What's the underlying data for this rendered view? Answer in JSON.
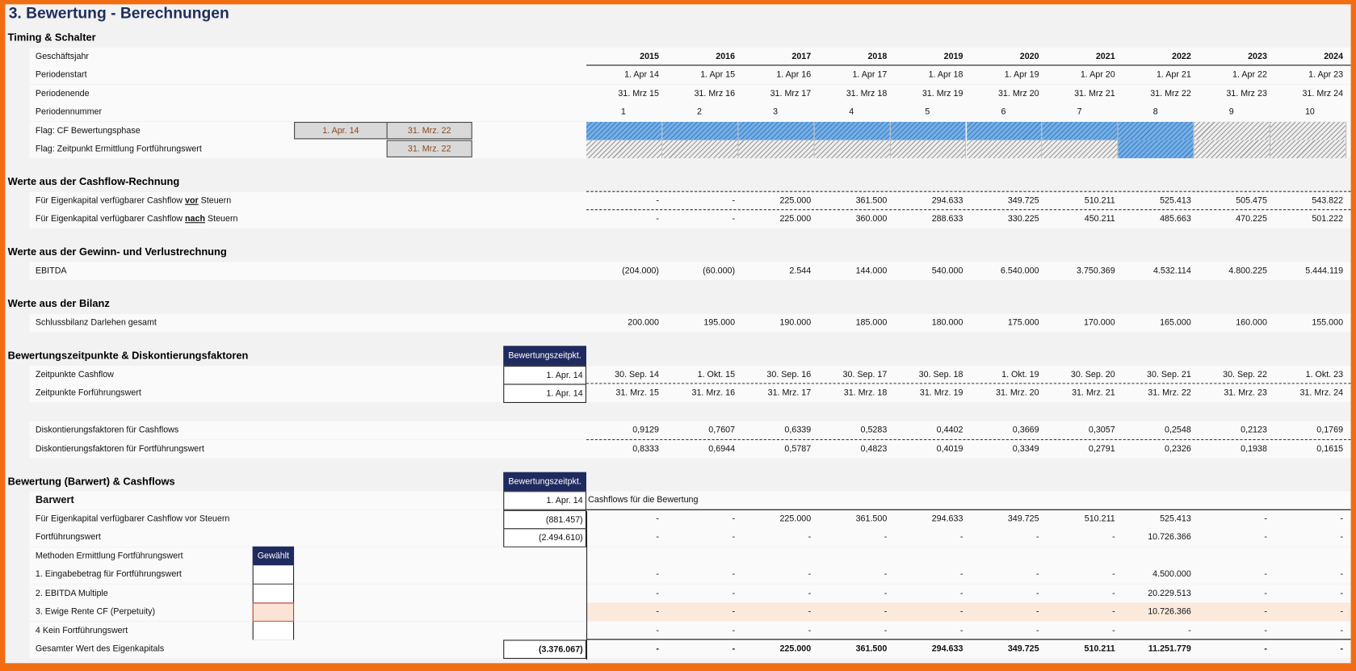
{
  "title": "3. Bewertung - Berechnungen",
  "rows": [
    {
      "kind": "heading",
      "label": "Timing & Schalter"
    },
    {
      "kind": "years",
      "label": "Geschäftsjahr",
      "values": [
        "2015",
        "2016",
        "2017",
        "2018",
        "2019",
        "2020",
        "2021",
        "2022",
        "2023",
        "2024"
      ]
    },
    {
      "kind": "row",
      "label": "Periodenstart",
      "values": [
        "1. Apr 14",
        "1. Apr 15",
        "1. Apr 16",
        "1. Apr 17",
        "1. Apr 18",
        "1. Apr 19",
        "1. Apr 20",
        "1. Apr 21",
        "1. Apr 22",
        "1. Apr 23"
      ]
    },
    {
      "kind": "row",
      "label": "Periodenende",
      "values": [
        "31. Mrz 15",
        "31. Mrz 16",
        "31. Mrz 17",
        "31. Mrz 18",
        "31. Mrz 19",
        "31. Mrz 20",
        "31. Mrz 21",
        "31. Mrz 22",
        "31. Mrz 23",
        "31. Mrz 24"
      ]
    },
    {
      "kind": "periods",
      "label": "Periodennummer",
      "values": [
        "1",
        "2",
        "3",
        "4",
        "5",
        "6",
        "7",
        "8",
        "9",
        "10"
      ]
    },
    {
      "kind": "flag",
      "label": "Flag: CF Bewertungsphase",
      "box_start": "1. Apr. 14",
      "box_end": "31. Mrz. 22",
      "flags": [
        1,
        1,
        1,
        1,
        1,
        1,
        1,
        1,
        0,
        0
      ]
    },
    {
      "kind": "flag",
      "label": "Flag: Zeitpunkt Ermittlung Fortführungswert",
      "box_end": "31. Mrz. 22",
      "flags": [
        0,
        0,
        0,
        0,
        0,
        0,
        0,
        1,
        0,
        0
      ]
    },
    {
      "kind": "heading",
      "label": "Werte aus der Cashflow-Rechnung"
    },
    {
      "kind": "row",
      "line": "dash",
      "label": "Für Eigenkapital verfügbarer Cashflow ",
      "label_em": "vor",
      "label_post": " Steuern",
      "values": [
        "-",
        "-",
        "225.000",
        "361.500",
        "294.633",
        "349.725",
        "510.211",
        "525.413",
        "505.475",
        "543.822"
      ]
    },
    {
      "kind": "row",
      "line": "dash",
      "label": "Für Eigenkapital verfügbarer Cashflow ",
      "label_em": "nach",
      "label_post": " Steuern",
      "values": [
        "-",
        "-",
        "225.000",
        "360.000",
        "288.633",
        "330.225",
        "450.211",
        "485.663",
        "470.225",
        "501.222"
      ]
    },
    {
      "kind": "heading",
      "label": "Werte aus der Gewinn- und Verlustrechnung"
    },
    {
      "kind": "row",
      "label": "EBITDA",
      "values": [
        "(204.000)",
        "(60.000)",
        "2.544",
        "144.000",
        "540.000",
        "6.540.000",
        "3.750.369",
        "4.532.114",
        "4.800.225",
        "5.444.119"
      ]
    },
    {
      "kind": "heading",
      "label": "Werte aus der Bilanz"
    },
    {
      "kind": "row",
      "label": "Schlussbilanz Darlehen gesamt",
      "values": [
        "200.000",
        "195.000",
        "190.000",
        "185.000",
        "180.000",
        "175.000",
        "170.000",
        "165.000",
        "160.000",
        "155.000"
      ]
    },
    {
      "kind": "heading",
      "label": "Bewertungszeitpunkte & Diskontierungsfaktoren",
      "bz_head": "Bewertungszeitpkt."
    },
    {
      "kind": "row",
      "label": "Zeitpunkte Cashflow",
      "bz": "1. Apr. 14",
      "values": [
        "30. Sep. 14",
        "1. Okt. 15",
        "30. Sep. 16",
        "30. Sep. 17",
        "30. Sep. 18",
        "1. Okt. 19",
        "30. Sep. 20",
        "30. Sep. 21",
        "30. Sep. 22",
        "1. Okt. 23"
      ]
    },
    {
      "kind": "row",
      "line": "dash",
      "label": "Zeitpunkte Forführungswert",
      "bz": "1. Apr. 14",
      "values": [
        "31. Mrz. 15",
        "31. Mrz. 16",
        "31. Mrz. 17",
        "31. Mrz. 18",
        "31. Mrz. 19",
        "31. Mrz. 20",
        "31. Mrz. 21",
        "31. Mrz. 22",
        "31. Mrz. 23",
        "31. Mrz. 24"
      ]
    },
    {
      "kind": "row",
      "label": "Diskontierungsfaktoren für Cashflows",
      "values": [
        "0,9129",
        "0,7607",
        "0,6339",
        "0,5283",
        "0,4402",
        "0,3669",
        "0,3057",
        "0,2548",
        "0,2123",
        "0,1769"
      ]
    },
    {
      "kind": "row",
      "line": "dash",
      "label": "Diskontierungsfaktoren für Fortführungswert",
      "values": [
        "0,8333",
        "0,6944",
        "0,5787",
        "0,4823",
        "0,4019",
        "0,3349",
        "0,2791",
        "0,2326",
        "0,1938",
        "0,1615"
      ]
    },
    {
      "kind": "heading",
      "label": "Bewertung (Barwert) & Cashflows",
      "bz_head": "Bewertungszeitpkt."
    },
    {
      "kind": "big",
      "label": "Barwert",
      "bz": "1. Apr. 14",
      "note": "Cashflows für die Bewertung"
    },
    {
      "kind": "row",
      "line": "solid",
      "label": "Für Eigenkapital verfügbarer Cashflow vor Steuern",
      "bz": "(881.457)",
      "values": [
        "-",
        "-",
        "225.000",
        "361.500",
        "294.633",
        "349.725",
        "510.211",
        "525.413",
        "-",
        "-"
      ]
    },
    {
      "kind": "row",
      "label": "Fortführungswert",
      "bz": "(2.494.610)",
      "values": [
        "-",
        "-",
        "-",
        "-",
        "-",
        "-",
        "-",
        "10.726.366",
        "-",
        "-"
      ]
    },
    {
      "kind": "gewhead",
      "label": "Methoden Ermittlung Fortführungswert",
      "gew_head": "Gewählt"
    },
    {
      "kind": "method",
      "label": "1. Eingabebetrag für Fortführungswert",
      "values": [
        "-",
        "-",
        "-",
        "-",
        "-",
        "-",
        "-",
        "4.500.000",
        "-",
        "-"
      ]
    },
    {
      "kind": "method",
      "label": "2. EBITDA Multiple",
      "values": [
        "-",
        "-",
        "-",
        "-",
        "-",
        "-",
        "-",
        "20.229.513",
        "-",
        "-"
      ]
    },
    {
      "kind": "method",
      "selected": true,
      "label": "3. Ewige Rente CF (Perpetuity)",
      "values": [
        "-",
        "-",
        "-",
        "-",
        "-",
        "-",
        "-",
        "10.726.366",
        "-",
        "-"
      ]
    },
    {
      "kind": "method",
      "label": "4  Kein Fortführungswert",
      "values": [
        "-",
        "-",
        "-",
        "-",
        "-",
        "-",
        "-",
        "-",
        "-",
        "-"
      ]
    },
    {
      "kind": "row",
      "line": "solid",
      "bold": true,
      "label": "Gesamter Wert des Eigenkapitals",
      "bz": "(3.376.067)",
      "values": [
        "-",
        "-",
        "225.000",
        "361.500",
        "294.633",
        "349.725",
        "510.211",
        "11.251.779",
        "-",
        "-"
      ]
    }
  ],
  "colors": {
    "accent_navy": "#1f2a5e",
    "frame_orange": "#f26c12",
    "flag_blue": "#74aee6",
    "selected_peach": "#fbe4d5"
  }
}
